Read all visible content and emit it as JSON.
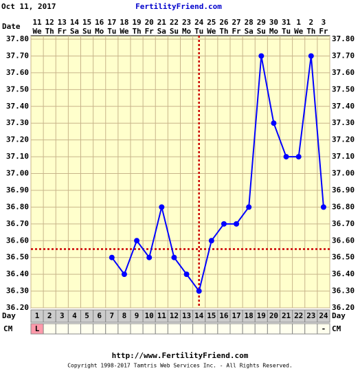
{
  "header": {
    "date": "Oct 11, 2017",
    "site": "FertilityFriend.com"
  },
  "chart_data": {
    "type": "line",
    "x_label": "Date",
    "categories": [
      "11",
      "12",
      "13",
      "14",
      "15",
      "16",
      "17",
      "18",
      "19",
      "20",
      "21",
      "22",
      "23",
      "24",
      "25",
      "26",
      "27",
      "28",
      "29",
      "30",
      "31",
      "1",
      "2",
      "3"
    ],
    "weekdays": [
      "We",
      "Th",
      "Fr",
      "Sa",
      "Su",
      "Mo",
      "Tu",
      "We",
      "Th",
      "Fr",
      "Sa",
      "Su",
      "Mo",
      "Tu",
      "We",
      "Th",
      "Fr",
      "Sa",
      "Su",
      "Mo",
      "Tu",
      "We",
      "Th",
      "Fr"
    ],
    "day_label": "Day",
    "days": [
      1,
      2,
      3,
      4,
      5,
      6,
      7,
      8,
      9,
      10,
      11,
      12,
      13,
      14,
      15,
      16,
      17,
      18,
      19,
      20,
      21,
      22,
      23,
      24
    ],
    "cm_label": "CM",
    "cm": [
      "L",
      null,
      null,
      null,
      null,
      null,
      null,
      null,
      null,
      null,
      null,
      null,
      null,
      null,
      null,
      null,
      null,
      null,
      null,
      null,
      null,
      null,
      null,
      "-"
    ],
    "series": [
      {
        "color": "#0000ff",
        "values": [
          null,
          null,
          null,
          null,
          null,
          null,
          36.5,
          36.4,
          36.6,
          36.5,
          36.8,
          36.5,
          36.4,
          36.3,
          36.6,
          36.7,
          36.7,
          36.8,
          37.7,
          37.3,
          37.1,
          37.1,
          37.7,
          36.8
        ]
      }
    ],
    "ylim": [
      36.2,
      37.8
    ],
    "yticks": [
      {
        "value": 36.2,
        "label": "36.20"
      },
      {
        "value": 36.3,
        "label": "36.30"
      },
      {
        "value": 36.4,
        "label": "36.40"
      },
      {
        "value": 36.5,
        "label": "36.50"
      },
      {
        "value": 36.6,
        "label": "36.60"
      },
      {
        "value": 36.7,
        "label": "36.70"
      },
      {
        "value": 36.8,
        "label": "36.80"
      },
      {
        "value": 36.9,
        "label": "36.90"
      },
      {
        "value": 37.0,
        "label": "37.00"
      },
      {
        "value": 37.1,
        "label": "37.10"
      },
      {
        "value": 37.2,
        "label": "37.20"
      },
      {
        "value": 37.3,
        "label": "37.30"
      },
      {
        "value": 37.4,
        "label": "37.40"
      },
      {
        "value": 37.5,
        "label": "37.50"
      },
      {
        "value": 37.6,
        "label": "37.60"
      },
      {
        "value": 37.7,
        "label": "37.70"
      },
      {
        "value": 37.8,
        "label": "37.80"
      }
    ],
    "grid": true,
    "coverline": 36.55,
    "ovulation_day": 14,
    "marker_color": "#cc0000"
  },
  "footer": {
    "url": "http://www.FertilityFriend.com",
    "copyright": "Copyright 1998-2017 Tamtris Web Services Inc. - All Rights Reserved."
  }
}
